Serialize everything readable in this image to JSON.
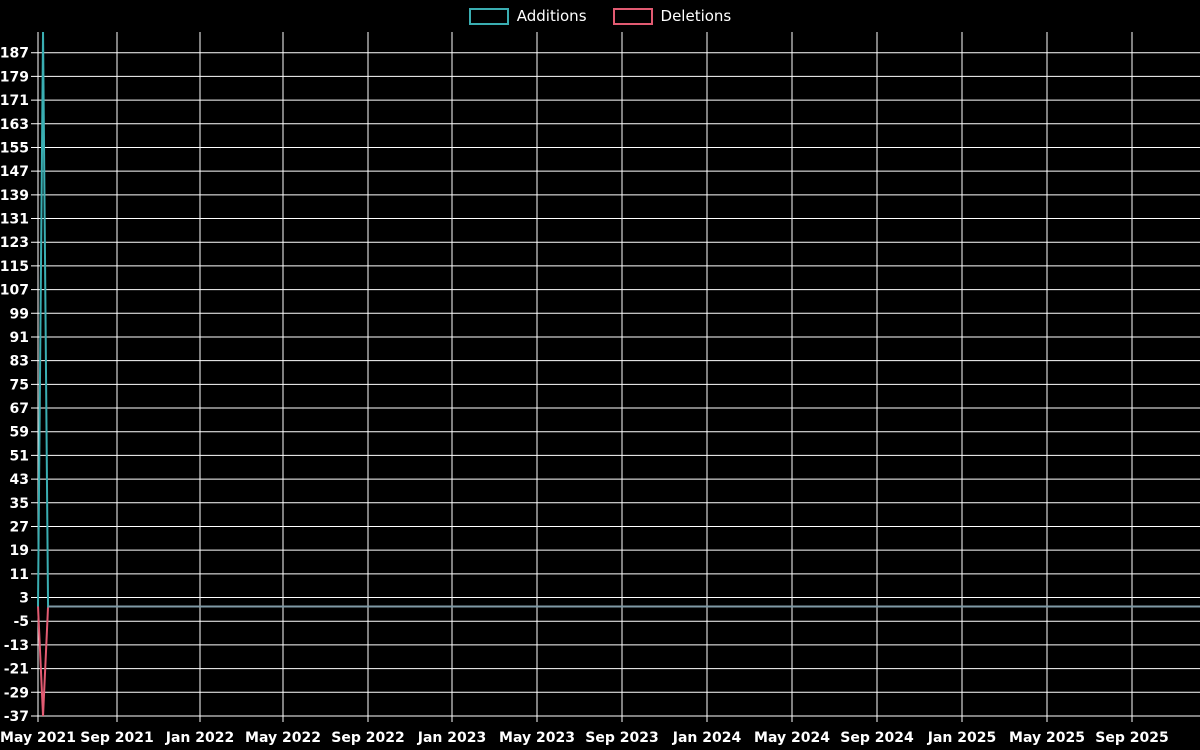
{
  "legend": {
    "items": [
      {
        "label": "Additions"
      },
      {
        "label": "Deletions"
      }
    ]
  },
  "chart_data": {
    "type": "line",
    "title": "",
    "x_unit": "weeks since May 2021",
    "x_tick_labels": [
      "May 2021",
      "Sep 2021",
      "Jan 2022",
      "May 2022",
      "Sep 2022",
      "Jan 2023",
      "May 2023",
      "Sep 2023",
      "Jan 2024",
      "May 2024",
      "Sep 2024",
      "Jan 2025",
      "May 2025",
      "Sep 2025"
    ],
    "y_ticks": [
      187,
      179,
      171,
      163,
      155,
      147,
      139,
      131,
      123,
      115,
      107,
      99,
      91,
      83,
      75,
      67,
      59,
      51,
      43,
      35,
      27,
      19,
      11,
      3,
      -5,
      -13,
      -21,
      -29,
      -37
    ],
    "ylim": [
      -37,
      194
    ],
    "total_weeks": 231,
    "grid": true,
    "legend_position": "top-center",
    "series": [
      {
        "name": "Additions",
        "points": [
          [
            0,
            0
          ],
          [
            1,
            194
          ],
          [
            2,
            0
          ],
          [
            231,
            0
          ]
        ]
      },
      {
        "name": "Deletions",
        "points": [
          [
            0,
            0
          ],
          [
            1,
            -37
          ],
          [
            2,
            0
          ],
          [
            231,
            0
          ]
        ]
      }
    ],
    "colors": {
      "additions": "#3aaeb2",
      "deletions": "#e25b72",
      "overlap_zero_line": "#7f9aa6",
      "grid": "#ffffff",
      "text": "#ffffff",
      "background": "#000000"
    }
  }
}
